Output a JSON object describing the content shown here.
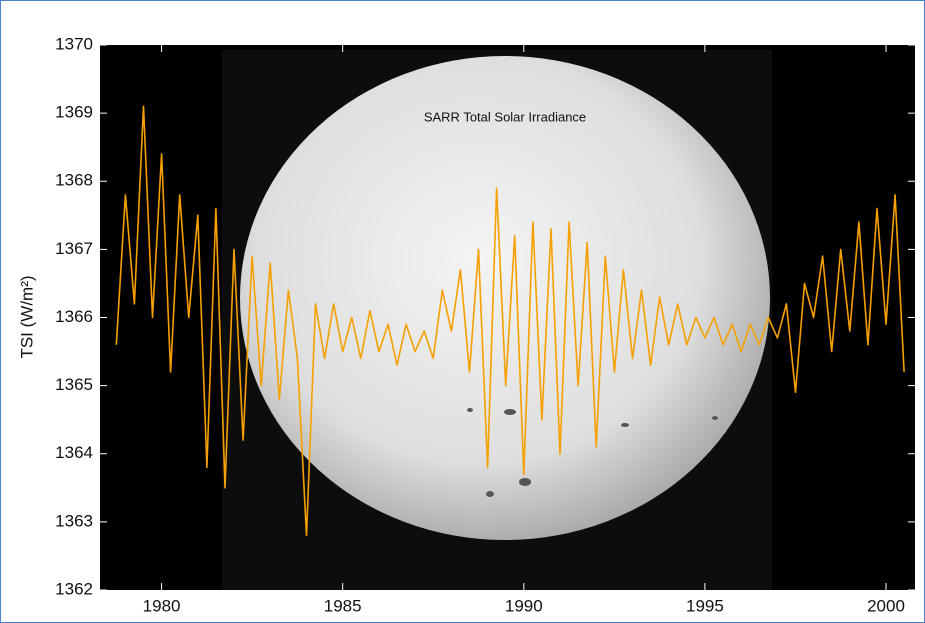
{
  "chart_data": {
    "type": "line",
    "title": "SARR Total Solar Irradiance",
    "y_label": "TSI (W/m²)",
    "xlim": [
      1978.3,
      2000.8
    ],
    "ylim": [
      1362,
      1370
    ],
    "xticks": [
      1980,
      1985,
      1990,
      1995,
      2000
    ],
    "yticks": [
      1362,
      1363,
      1364,
      1365,
      1366,
      1367,
      1368,
      1369,
      1370
    ],
    "series": [
      {
        "color": "#f5a000",
        "x": [
          1978.75,
          1979,
          1979.25,
          1979.5,
          1979.75,
          1980,
          1980.25,
          1980.5,
          1980.75,
          1981,
          1981.25,
          1981.5,
          1981.75,
          1982,
          1982.25,
          1982.5,
          1982.75,
          1983,
          1983.25,
          1983.5,
          1983.75,
          1984,
          1984.25,
          1984.5,
          1984.75,
          1985,
          1985.25,
          1985.5,
          1985.75,
          1986,
          1986.25,
          1986.5,
          1986.75,
          1987,
          1987.25,
          1987.5,
          1987.75,
          1988,
          1988.25,
          1988.5,
          1988.75,
          1989,
          1989.25,
          1989.5,
          1989.75,
          1990,
          1990.25,
          1990.5,
          1990.75,
          1991,
          1991.25,
          1991.5,
          1991.75,
          1992,
          1992.25,
          1992.5,
          1992.75,
          1993,
          1993.25,
          1993.5,
          1993.75,
          1994,
          1994.25,
          1994.5,
          1994.75,
          1995,
          1995.25,
          1995.5,
          1995.75,
          1996,
          1996.25,
          1996.5,
          1996.75,
          1997,
          1997.25,
          1997.5,
          1997.75,
          1998,
          1998.25,
          1998.5,
          1998.75,
          1999,
          1999.25,
          1999.5,
          1999.75,
          2000,
          2000.25,
          2000.5
        ],
        "values": [
          1365.6,
          1367.8,
          1366.2,
          1369.1,
          1366.0,
          1368.4,
          1365.2,
          1367.8,
          1366.0,
          1367.5,
          1363.8,
          1367.6,
          1363.5,
          1367.0,
          1364.2,
          1366.9,
          1365.0,
          1366.8,
          1364.8,
          1366.4,
          1365.4,
          1362.8,
          1366.2,
          1365.4,
          1366.2,
          1365.5,
          1366.0,
          1365.4,
          1366.1,
          1365.5,
          1365.9,
          1365.3,
          1365.9,
          1365.5,
          1365.8,
          1365.4,
          1366.4,
          1365.8,
          1366.7,
          1365.2,
          1367.0,
          1363.8,
          1367.9,
          1365.0,
          1367.2,
          1363.7,
          1367.4,
          1364.5,
          1367.3,
          1364.0,
          1367.4,
          1365.0,
          1367.1,
          1364.1,
          1366.9,
          1365.2,
          1366.7,
          1365.4,
          1366.4,
          1365.3,
          1366.3,
          1365.6,
          1366.2,
          1365.6,
          1366.0,
          1365.7,
          1366.0,
          1365.6,
          1365.9,
          1365.5,
          1365.9,
          1365.6,
          1366.0,
          1365.7,
          1366.2,
          1364.9,
          1366.5,
          1366.0,
          1366.9,
          1365.5,
          1367.0,
          1365.8,
          1367.4,
          1365.6,
          1367.6,
          1365.9,
          1367.8,
          1365.2
        ]
      }
    ]
  }
}
